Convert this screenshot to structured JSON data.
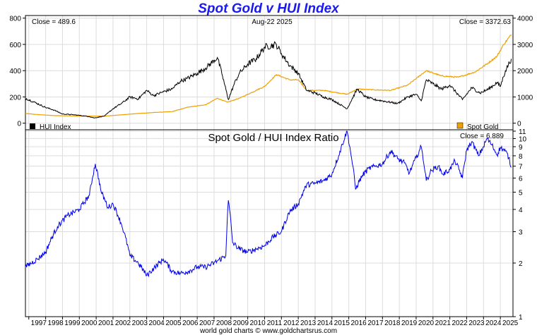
{
  "title": "Spot Gold v HUI Index",
  "footer": "world gold charts © www.goldchartsrus.com",
  "chart_data": [
    {
      "type": "line",
      "title": "Spot Gold v HUI Index",
      "date": "Aug-22  2025",
      "close_left": "Close = 489.6",
      "close_right": "Close = 3372.63",
      "y_left": {
        "ticks": [
          0,
          200,
          400,
          600,
          800
        ],
        "range": [
          -50,
          820
        ]
      },
      "y_right": {
        "ticks": [
          0,
          1000,
          2000,
          3000,
          4000
        ],
        "range": [
          -250,
          4100
        ]
      },
      "x_range": [
        1996.8,
        2025.75
      ],
      "grid": true,
      "legend": [
        {
          "label": "HUI Index",
          "color": "#000000",
          "placement": "bottom-left"
        },
        {
          "label": "Spot Gold",
          "color": "#f0a000",
          "placement": "bottom-right"
        }
      ],
      "series": [
        {
          "name": "HUI Index",
          "color": "#000000",
          "axis": "left",
          "x": [
            1996.8,
            1997.5,
            1998.0,
            1998.5,
            1999.0,
            1999.6,
            2000.0,
            2000.6,
            2000.9,
            2001.5,
            2002.0,
            2002.5,
            2003.0,
            2003.5,
            2004.0,
            2004.4,
            2005.0,
            2005.5,
            2006.0,
            2006.4,
            2007.0,
            2007.5,
            2008.2,
            2008.5,
            2008.85,
            2009.2,
            2009.5,
            2010.0,
            2010.5,
            2011.0,
            2011.7,
            2012.0,
            2012.5,
            2013.0,
            2013.5,
            2014.0,
            2014.5,
            2015.0,
            2015.9,
            2016.5,
            2017.0,
            2017.5,
            2018.0,
            2018.9,
            2019.5,
            2020.0,
            2020.3,
            2020.6,
            2021.0,
            2021.5,
            2022.0,
            2022.75,
            2023.3,
            2023.8,
            2024.3,
            2024.8,
            2025.0,
            2025.3,
            2025.65
          ],
          "values": [
            190,
            150,
            120,
            100,
            70,
            65,
            60,
            50,
            40,
            55,
            110,
            150,
            200,
            185,
            250,
            210,
            240,
            260,
            320,
            340,
            380,
            420,
            500,
            360,
            180,
            300,
            380,
            450,
            490,
            580,
            600,
            530,
            440,
            380,
            250,
            230,
            200,
            180,
            110,
            260,
            200,
            180,
            170,
            150,
            200,
            220,
            170,
            330,
            300,
            260,
            290,
            180,
            270,
            230,
            260,
            310,
            280,
            400,
            490
          ]
        },
        {
          "name": "Spot Gold",
          "color": "#f0a000",
          "axis": "right",
          "x": [
            1996.8,
            1997.5,
            1998.5,
            1999.5,
            2000.5,
            2001.5,
            2002.5,
            2003.5,
            2004.5,
            2005.5,
            2006.5,
            2007.5,
            2008.2,
            2008.8,
            2009.5,
            2010.5,
            2011.0,
            2011.7,
            2012.5,
            2013.0,
            2013.5,
            2014.5,
            2015.9,
            2016.5,
            2017.5,
            2018.5,
            2019.5,
            2020.6,
            2021.5,
            2022.5,
            2023.5,
            2024.3,
            2024.8,
            2025.2,
            2025.65
          ],
          "values": [
            370,
            330,
            290,
            280,
            270,
            270,
            320,
            370,
            410,
            440,
            620,
            700,
            950,
            800,
            950,
            1250,
            1400,
            1850,
            1650,
            1650,
            1250,
            1250,
            1100,
            1300,
            1270,
            1250,
            1450,
            2000,
            1800,
            1750,
            1950,
            2300,
            2550,
            3000,
            3370
          ]
        }
      ]
    },
    {
      "type": "line",
      "title": "Spot Gold  /  HUI Index Ratio",
      "close": "Close = 6.889",
      "y": {
        "ticks": [
          1,
          2,
          3,
          4,
          5,
          6,
          7,
          8,
          9,
          10,
          11
        ],
        "scale": "log",
        "range": [
          1,
          11.2
        ]
      },
      "x_range": [
        1996.8,
        2025.75
      ],
      "grid": true,
      "series": [
        {
          "name": "Ratio",
          "color": "#0000e8",
          "x": [
            1996.8,
            1997.5,
            1998.0,
            1998.7,
            1999.3,
            2000.0,
            2000.6,
            2000.95,
            2001.3,
            2001.7,
            2002.0,
            2002.5,
            2003.0,
            2003.5,
            2004.0,
            2004.5,
            2005.0,
            2005.5,
            2006.0,
            2006.5,
            2007.0,
            2007.5,
            2008.0,
            2008.7,
            2008.85,
            2009.1,
            2009.5,
            2010.0,
            2010.5,
            2011.0,
            2011.5,
            2012.0,
            2012.5,
            2013.0,
            2013.5,
            2014.0,
            2014.5,
            2015.0,
            2015.4,
            2015.9,
            2016.1,
            2016.4,
            2016.8,
            2017.2,
            2017.6,
            2018.0,
            2018.5,
            2018.9,
            2019.3,
            2019.6,
            2020.0,
            2020.3,
            2020.6,
            2020.9,
            2021.3,
            2021.6,
            2022.0,
            2022.3,
            2022.75,
            2023.0,
            2023.3,
            2023.7,
            2024.0,
            2024.2,
            2024.5,
            2024.8,
            2025.0,
            2025.3,
            2025.5,
            2025.65
          ],
          "values": [
            1.9,
            2.1,
            2.3,
            3.2,
            3.7,
            4.0,
            4.8,
            7.2,
            5.0,
            4.1,
            4.3,
            3.3,
            2.2,
            2.0,
            1.7,
            1.9,
            2.1,
            1.8,
            1.75,
            1.8,
            1.9,
            1.9,
            2.0,
            2.2,
            4.5,
            2.6,
            2.4,
            2.3,
            2.4,
            2.5,
            2.8,
            3.0,
            3.9,
            4.3,
            5.5,
            5.6,
            5.8,
            6.3,
            8.0,
            11.0,
            8.5,
            5.2,
            6.2,
            6.8,
            7.0,
            7.2,
            8.5,
            7.7,
            7.3,
            6.4,
            7.8,
            9.0,
            5.8,
            6.6,
            7.0,
            6.3,
            6.7,
            7.5,
            6.0,
            8.6,
            9.6,
            8.0,
            9.0,
            10.0,
            9.2,
            8.1,
            8.9,
            8.5,
            7.8,
            6.889
          ]
        }
      ],
      "x_ticks": [
        "1997",
        "1998",
        "1999",
        "2000",
        "2001",
        "2002",
        "2003",
        "2004",
        "2005",
        "2006",
        "2007",
        "2008",
        "2009",
        "2010",
        "2011",
        "2012",
        "2013",
        "2014",
        "2015",
        "2016",
        "2017",
        "2018",
        "2019",
        "2020",
        "2021",
        "2022",
        "2023",
        "2024",
        "2025"
      ]
    }
  ]
}
